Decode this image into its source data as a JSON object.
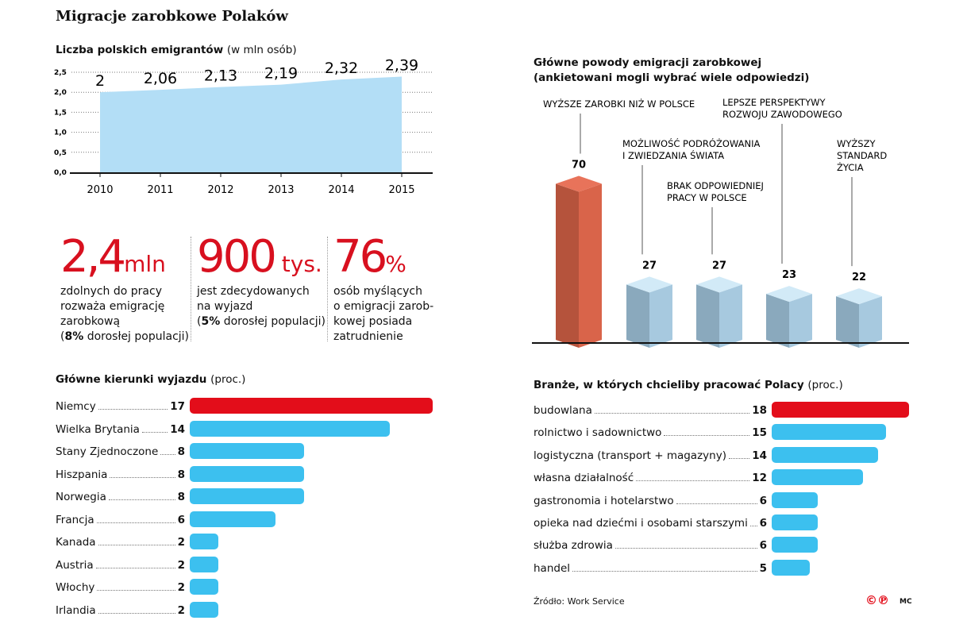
{
  "title": "Migracje zarobkowe Polaków",
  "colors": {
    "red": "#e30d1a",
    "blue": "#3cc0ef",
    "area": "#b3def6",
    "orange": "#d9644a",
    "steel": "#a7c9df"
  },
  "stats": [
    {
      "value": "2,4",
      "unit": "mln",
      "desc": [
        "zdolnych do pracy",
        "rozważa emigrację",
        "zarobkową"
      ],
      "bold": "8%",
      "tail": " dorosłej populacji)"
    },
    {
      "value": "900",
      "unit": " tys.",
      "desc": [
        "jest zdecydowanych",
        "na wyjazd"
      ],
      "bold": "5%",
      "tail": " dorosłej populacji)"
    },
    {
      "value": "76",
      "unit": "%",
      "desc": [
        "osób myślących",
        "o emigracji zarob-",
        "kowej posiada",
        "zatrudnienie"
      ]
    }
  ],
  "source": "Źródło: Work Service",
  "author": "MC",
  "logo": "©℗",
  "chart_data": [
    {
      "type": "area",
      "title": "Liczba polskich emigrantów",
      "unit": "(w mln osób)",
      "x": [
        "2010",
        "2011",
        "2012",
        "2013",
        "2014",
        "2015"
      ],
      "values": [
        2,
        2.06,
        2.13,
        2.19,
        2.32,
        2.39
      ],
      "labels": [
        "2",
        "2,06",
        "2,13",
        "2,19",
        "2,32",
        "2,39"
      ],
      "yticks": [
        "0,0",
        "0,5",
        "1,0",
        "1,5",
        "2,0",
        "2,5"
      ],
      "ylim": [
        0,
        2.5
      ],
      "grid": true
    },
    {
      "type": "bar",
      "title": "Główne kierunki wyjazdu",
      "unit": "(proc.)",
      "categories": [
        "Niemcy",
        "Wielka Brytania",
        "Stany Zjednoczone",
        "Hiszpania",
        "Norwegia",
        "Francja",
        "Kanada",
        "Austria",
        "Włochy",
        "Irlandia"
      ],
      "values": [
        17,
        14,
        8,
        8,
        8,
        6,
        2,
        2,
        2,
        2
      ]
    },
    {
      "type": "bar",
      "title": "Główne powody emigracji zarobkowej",
      "subtitle": "(ankietowani mogli wybrać wiele odpowiedzi)",
      "categories": [
        [
          "WYŻSZE ZAROBKI NIŻ W POLSCE"
        ],
        [
          "MOŻLIWOŚĆ PODRÓŻOWANIA",
          "I ZWIEDZANIA ŚWIATA"
        ],
        [
          "BRAK ODPOWIEDNIEJ",
          "PRACY W POLSCE"
        ],
        [
          "LEPSZE PERSPEKTYWY",
          "ROZWOJU ZAWODOWEGO"
        ],
        [
          "WYŻSZY",
          "STANDARD",
          "ŻYCIA"
        ]
      ],
      "values": [
        70,
        27,
        27,
        23,
        22
      ]
    },
    {
      "type": "bar",
      "title": "Branże, w których chcieliby pracować Polacy",
      "unit": "(proc.)",
      "categories": [
        "budowlana",
        "rolnictwo i sadownictwo",
        "logistyczna (transport + magazyny)",
        "własna działalność",
        "gastronomia i hotelarstwo",
        "opieka nad dziećmi i osobami starszymi",
        "służba zdrowia",
        "handel"
      ],
      "values": [
        18,
        15,
        14,
        12,
        6,
        6,
        6,
        5
      ]
    }
  ]
}
